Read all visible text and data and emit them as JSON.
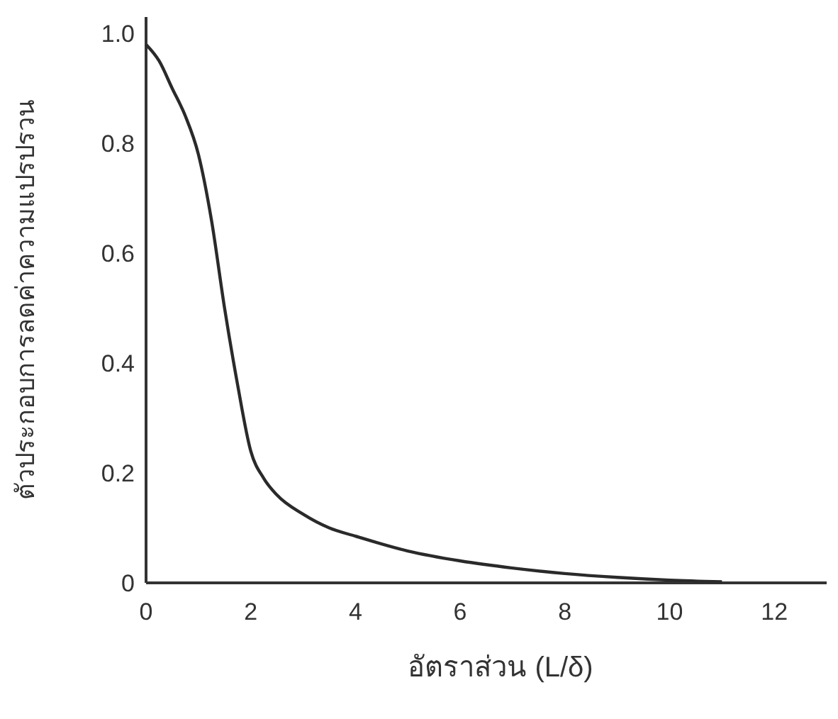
{
  "chart_data": {
    "type": "line",
    "xlabel": "อัตราส่วน (L/δ)",
    "ylabel": "ตัวประกอบการลดค่าความแปรปรวน",
    "x": [
      0,
      0.25,
      0.5,
      0.75,
      1,
      1.25,
      1.5,
      1.75,
      2,
      2.25,
      2.5,
      3,
      3.5,
      4,
      5,
      6,
      7,
      8,
      9,
      10,
      11
    ],
    "series": [
      {
        "color": "#2a2a2a",
        "values": [
          0.98,
          0.95,
          0.9,
          0.85,
          0.78,
          0.66,
          0.5,
          0.36,
          0.24,
          0.19,
          0.16,
          0.125,
          0.1,
          0.085,
          0.058,
          0.04,
          0.027,
          0.017,
          0.01,
          0.005,
          0.002
        ]
      }
    ],
    "xlim": [
      0,
      13
    ],
    "ylim": [
      0,
      1.03
    ],
    "xticks": [
      0,
      2,
      4,
      6,
      8,
      10,
      12
    ],
    "yticks": [
      0,
      0.2,
      0.4,
      0.6,
      0.8,
      {
        "value": 1,
        "label": "1.0"
      }
    ],
    "grid": false,
    "marker": "none",
    "line_style": "solid"
  }
}
